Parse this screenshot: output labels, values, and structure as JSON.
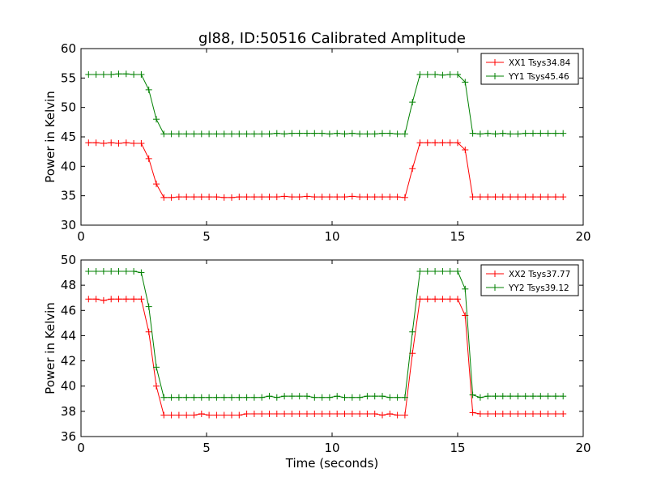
{
  "title": "gl88, ID:50516 Calibrated Amplitude",
  "chart_data": [
    {
      "type": "line",
      "title": "gl88, ID:50516 Calibrated Amplitude",
      "xlabel": "",
      "ylabel": "Power in Kelvin",
      "xlim": [
        0,
        20
      ],
      "ylim": [
        30,
        60
      ],
      "xticks": [
        "0",
        "5",
        "10",
        "15",
        "20"
      ],
      "yticks": [
        "30",
        "35",
        "40",
        "45",
        "50",
        "55",
        "60"
      ],
      "grid": false,
      "legend_position": "top-right",
      "series": [
        {
          "name": "XX1 Tsys34.84",
          "color": "#ff0000",
          "x": [
            0.3,
            0.6,
            0.9,
            1.2,
            1.5,
            1.8,
            2.1,
            2.4,
            2.7,
            3.0,
            3.3,
            3.6,
            3.9,
            4.2,
            4.5,
            4.8,
            5.1,
            5.4,
            5.7,
            6.0,
            6.3,
            6.6,
            6.9,
            7.2,
            7.5,
            7.8,
            8.1,
            8.4,
            8.7,
            9.0,
            9.3,
            9.6,
            9.9,
            10.2,
            10.5,
            10.8,
            11.1,
            11.4,
            11.7,
            12.0,
            12.3,
            12.6,
            12.9,
            13.2,
            13.5,
            13.8,
            14.1,
            14.4,
            14.7,
            15.0,
            15.3,
            15.6,
            15.9,
            16.2,
            16.5,
            16.8,
            17.1,
            17.4,
            17.7,
            18.0,
            18.3,
            18.6,
            18.9,
            19.2
          ],
          "y": [
            44.0,
            44.0,
            43.9,
            44.0,
            43.9,
            44.0,
            43.9,
            43.9,
            41.3,
            37.0,
            34.7,
            34.7,
            34.8,
            34.8,
            34.8,
            34.8,
            34.8,
            34.8,
            34.7,
            34.7,
            34.8,
            34.8,
            34.8,
            34.8,
            34.8,
            34.8,
            34.9,
            34.8,
            34.8,
            34.9,
            34.8,
            34.8,
            34.8,
            34.8,
            34.8,
            34.9,
            34.8,
            34.8,
            34.8,
            34.8,
            34.8,
            34.8,
            34.7,
            39.6,
            44.0,
            44.0,
            44.0,
            44.0,
            44.0,
            44.0,
            42.8,
            34.8,
            34.8,
            34.8,
            34.8,
            34.8,
            34.8,
            34.8,
            34.8,
            34.8,
            34.8,
            34.8,
            34.8,
            34.8
          ]
        },
        {
          "name": "YY1 Tsys45.46",
          "color": "#008000",
          "x": [
            0.3,
            0.6,
            0.9,
            1.2,
            1.5,
            1.8,
            2.1,
            2.4,
            2.7,
            3.0,
            3.3,
            3.6,
            3.9,
            4.2,
            4.5,
            4.8,
            5.1,
            5.4,
            5.7,
            6.0,
            6.3,
            6.6,
            6.9,
            7.2,
            7.5,
            7.8,
            8.1,
            8.4,
            8.7,
            9.0,
            9.3,
            9.6,
            9.9,
            10.2,
            10.5,
            10.8,
            11.1,
            11.4,
            11.7,
            12.0,
            12.3,
            12.6,
            12.9,
            13.2,
            13.5,
            13.8,
            14.1,
            14.4,
            14.7,
            15.0,
            15.3,
            15.6,
            15.9,
            16.2,
            16.5,
            16.8,
            17.1,
            17.4,
            17.7,
            18.0,
            18.3,
            18.6,
            18.9,
            19.2
          ],
          "y": [
            55.6,
            55.6,
            55.6,
            55.6,
            55.7,
            55.7,
            55.6,
            55.6,
            53.0,
            48.0,
            45.5,
            45.5,
            45.5,
            45.5,
            45.5,
            45.5,
            45.5,
            45.5,
            45.5,
            45.5,
            45.5,
            45.5,
            45.5,
            45.5,
            45.5,
            45.6,
            45.5,
            45.6,
            45.6,
            45.6,
            45.6,
            45.6,
            45.5,
            45.6,
            45.5,
            45.6,
            45.5,
            45.5,
            45.5,
            45.6,
            45.6,
            45.5,
            45.5,
            50.9,
            55.6,
            55.6,
            55.6,
            55.5,
            55.6,
            55.6,
            54.3,
            45.6,
            45.5,
            45.6,
            45.5,
            45.6,
            45.5,
            45.5,
            45.6,
            45.6,
            45.6,
            45.6,
            45.6,
            45.6
          ]
        }
      ]
    },
    {
      "type": "line",
      "title": "",
      "xlabel": "Time (seconds)",
      "ylabel": "Power in Kelvin",
      "xlim": [
        0,
        20
      ],
      "ylim": [
        36,
        50
      ],
      "xticks": [
        "0",
        "5",
        "10",
        "15",
        "20"
      ],
      "yticks": [
        "36",
        "38",
        "40",
        "42",
        "44",
        "46",
        "48",
        "50"
      ],
      "grid": false,
      "legend_position": "top-right",
      "series": [
        {
          "name": "XX2 Tsys37.77",
          "color": "#ff0000",
          "x": [
            0.3,
            0.6,
            0.9,
            1.2,
            1.5,
            1.8,
            2.1,
            2.4,
            2.7,
            3.0,
            3.3,
            3.6,
            3.9,
            4.2,
            4.5,
            4.8,
            5.1,
            5.4,
            5.7,
            6.0,
            6.3,
            6.6,
            6.9,
            7.2,
            7.5,
            7.8,
            8.1,
            8.4,
            8.7,
            9.0,
            9.3,
            9.6,
            9.9,
            10.2,
            10.5,
            10.8,
            11.1,
            11.4,
            11.7,
            12.0,
            12.3,
            12.6,
            12.9,
            13.2,
            13.5,
            13.8,
            14.1,
            14.4,
            14.7,
            15.0,
            15.3,
            15.6,
            15.9,
            16.2,
            16.5,
            16.8,
            17.1,
            17.4,
            17.7,
            18.0,
            18.3,
            18.6,
            18.9,
            19.2
          ],
          "y": [
            46.9,
            46.9,
            46.8,
            46.9,
            46.9,
            46.9,
            46.9,
            46.9,
            44.3,
            40.0,
            37.7,
            37.7,
            37.7,
            37.7,
            37.7,
            37.8,
            37.7,
            37.7,
            37.7,
            37.7,
            37.7,
            37.8,
            37.8,
            37.8,
            37.8,
            37.8,
            37.8,
            37.8,
            37.8,
            37.8,
            37.8,
            37.8,
            37.8,
            37.8,
            37.8,
            37.8,
            37.8,
            37.8,
            37.8,
            37.7,
            37.8,
            37.7,
            37.7,
            42.6,
            46.9,
            46.9,
            46.9,
            46.9,
            46.9,
            46.9,
            45.6,
            37.9,
            37.8,
            37.8,
            37.8,
            37.8,
            37.8,
            37.8,
            37.8,
            37.8,
            37.8,
            37.8,
            37.8,
            37.8
          ]
        },
        {
          "name": "YY2 Tsys39.12",
          "color": "#008000",
          "x": [
            0.3,
            0.6,
            0.9,
            1.2,
            1.5,
            1.8,
            2.1,
            2.4,
            2.7,
            3.0,
            3.3,
            3.6,
            3.9,
            4.2,
            4.5,
            4.8,
            5.1,
            5.4,
            5.7,
            6.0,
            6.3,
            6.6,
            6.9,
            7.2,
            7.5,
            7.8,
            8.1,
            8.4,
            8.7,
            9.0,
            9.3,
            9.6,
            9.9,
            10.2,
            10.5,
            10.8,
            11.1,
            11.4,
            11.7,
            12.0,
            12.3,
            12.6,
            12.9,
            13.2,
            13.5,
            13.8,
            14.1,
            14.4,
            14.7,
            15.0,
            15.3,
            15.6,
            15.9,
            16.2,
            16.5,
            16.8,
            17.1,
            17.4,
            17.7,
            18.0,
            18.3,
            18.6,
            18.9,
            19.2
          ],
          "y": [
            49.1,
            49.1,
            49.1,
            49.1,
            49.1,
            49.1,
            49.1,
            49.0,
            46.3,
            41.5,
            39.1,
            39.1,
            39.1,
            39.1,
            39.1,
            39.1,
            39.1,
            39.1,
            39.1,
            39.1,
            39.1,
            39.1,
            39.1,
            39.1,
            39.2,
            39.1,
            39.2,
            39.2,
            39.2,
            39.2,
            39.1,
            39.1,
            39.1,
            39.2,
            39.1,
            39.1,
            39.1,
            39.2,
            39.2,
            39.2,
            39.1,
            39.1,
            39.1,
            44.3,
            49.1,
            49.1,
            49.1,
            49.1,
            49.1,
            49.1,
            47.7,
            39.3,
            39.1,
            39.2,
            39.2,
            39.2,
            39.2,
            39.2,
            39.2,
            39.2,
            39.2,
            39.2,
            39.2,
            39.2
          ]
        }
      ]
    }
  ]
}
